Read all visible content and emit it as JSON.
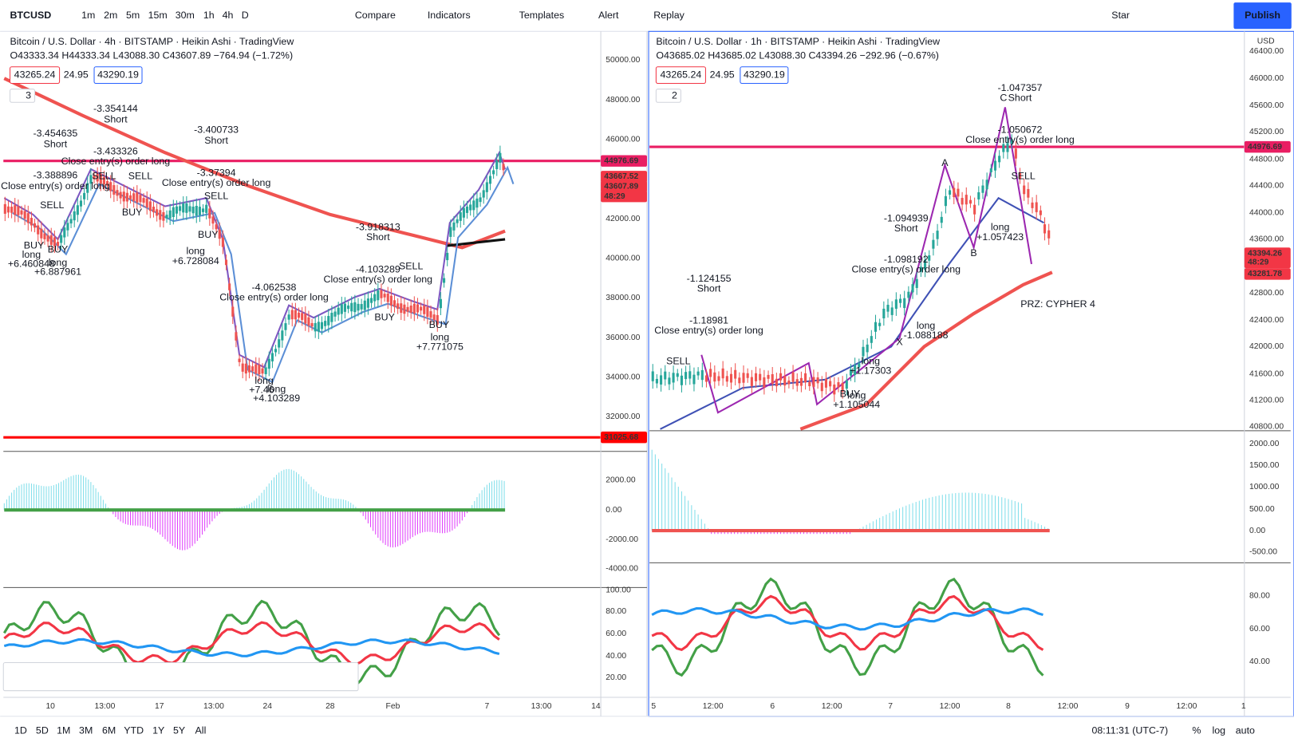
{
  "toolbar": {
    "symbol": "BTCUSD",
    "intervals": [
      "1m",
      "2m",
      "5m",
      "15m",
      "30m",
      "1h",
      "4h",
      "D"
    ],
    "buttons": [
      "Compare",
      "Indicators",
      "Templates",
      "Alert",
      "Replay"
    ],
    "layout_name": "Star",
    "publish": "Publish"
  },
  "left_chart": {
    "title": "Bitcoin / U.S. Dollar · 4h · BITSTAMP · Heikin Ashi · TradingView",
    "ohlc": "O43333.34 H44333.34 L43088.30 C43607.89 −764.94 (−1.72%)",
    "bid": "43265.24",
    "spread": "24.95",
    "ask": "43290.19",
    "indicator_count": "3",
    "price_axis": [
      "50000.00",
      "48000.00",
      "46000.00",
      "42000.00",
      "40000.00",
      "38000.00",
      "36000.00",
      "34000.00",
      "32000.00"
    ],
    "price_tags": [
      "44976.69",
      "43667.52",
      "43607.89",
      "48:29",
      "31025.68"
    ],
    "osc_axis": [
      "2000.00",
      "0.00",
      "-2000.00",
      "-4000.00"
    ],
    "stoch_axis": [
      "100.00",
      "80.00",
      "60.00",
      "40.00",
      "20.00"
    ],
    "time_axis": [
      "10",
      "13:00",
      "17",
      "13:00",
      "24",
      "28",
      "Feb",
      "7",
      "13:00",
      "14"
    ],
    "annotations": [
      "-3.454635",
      "Short",
      "-3.354144",
      "Short",
      "-3.433326",
      "Close entry(s) order long",
      "-3.388896",
      "Close entry(s) order long",
      "SELL",
      "SELL",
      "SELL",
      "BUY",
      "BUY",
      "BUY",
      "long",
      "+6.460848",
      "long",
      "+6.887961",
      "-3.400733",
      "Short",
      "-3.37394",
      "Close entry(s) order long",
      "SELL",
      "BUY",
      "long",
      "+6.728084",
      "-4.062538",
      "Close entry(s) order long",
      "long",
      "+7.46",
      "long",
      "+4.103289",
      "-3.918313",
      "Short",
      "-4.103289",
      "Close entry(s) order long",
      "SELL",
      "BUY",
      "BUY",
      "long",
      "+7.771075"
    ]
  },
  "right_chart": {
    "title": "Bitcoin / U.S. Dollar · 1h · BITSTAMP · Heikin Ashi · TradingView",
    "ohlc": "O43685.02 H43685.02 L43088.30 C43394.26 −292.96 (−0.67%)",
    "bid": "43265.24",
    "spread": "24.95",
    "ask": "43290.19",
    "indicator_count": "2",
    "currency": "USD",
    "price_axis": [
      "46400.00",
      "46000.00",
      "45600.00",
      "45200.00",
      "44800.00",
      "44400.00",
      "44000.00",
      "43600.00",
      "42800.00",
      "42400.00",
      "42000.00",
      "41600.00",
      "41200.00",
      "40800.00"
    ],
    "price_tags": [
      "44976.69",
      "43394.26",
      "48:29",
      "43281.78"
    ],
    "osc_axis": [
      "2000.00",
      "1500.00",
      "1000.00",
      "500.00",
      "0.00",
      "-500.00"
    ],
    "stoch_axis": [
      "80.00",
      "60.00",
      "40.00"
    ],
    "time_axis": [
      "5",
      "12:00",
      "6",
      "12:00",
      "7",
      "12:00",
      "8",
      "12:00",
      "9",
      "12:00",
      "1"
    ],
    "annotations": [
      "-1.047357",
      "C",
      "Short",
      "-1.050672",
      "Close entry(s) order long",
      "A",
      "B",
      "X",
      "SELL",
      "SELL",
      "-1.094939",
      "Short",
      "-1.098192",
      "Close entry(s) order long",
      "long",
      "-1.088188",
      "long",
      "+1.057423",
      "-1.124155",
      "Short",
      "-1.18981",
      "Close entry(s) order long",
      "long",
      "+1.17303",
      "long",
      "+1.105044",
      "PRZ: CYPHER 4",
      "BUY"
    ]
  },
  "bottom_bar": {
    "ranges": [
      "1D",
      "5D",
      "1M",
      "3M",
      "6M",
      "YTD",
      "1Y",
      "5Y",
      "All"
    ],
    "clock": "08:11:31 (UTC-7)",
    "options": [
      "%",
      "log",
      "auto"
    ]
  }
}
